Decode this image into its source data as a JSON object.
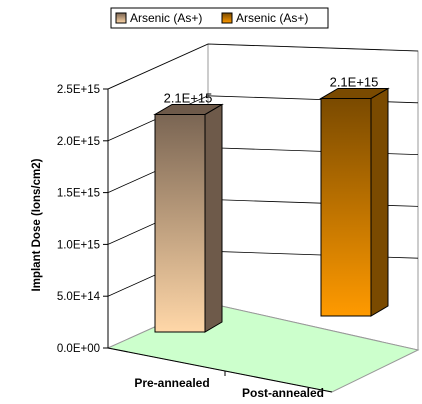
{
  "chart_data": {
    "type": "bar",
    "style": "3d-column",
    "categories": [
      "Pre-annealed",
      "Post-annealed"
    ],
    "series": [
      {
        "name": "Arsenic (As+)",
        "values": [
          2100000000000000.0,
          null
        ],
        "label": "2.1E+15",
        "color_front": "#d4a980",
        "color_top": "#6e5a4a"
      },
      {
        "name": "Arsenic (As+)",
        "values": [
          null,
          2100000000000000.0
        ],
        "label": "2.1E+15",
        "color_front": "#f39a00",
        "color_top": "#7a4a00"
      }
    ],
    "ylabel": "Implant Dose (Ions/cm2)",
    "ylim": [
      0,
      2500000000000000.0
    ],
    "yticks": [
      "0.0E+00",
      "5.0E+14",
      "1.0E+15",
      "1.5E+15",
      "2.0E+15",
      "2.5E+15"
    ],
    "legend_position": "top-center",
    "floor_color": "#ccffcc",
    "grid": true
  }
}
